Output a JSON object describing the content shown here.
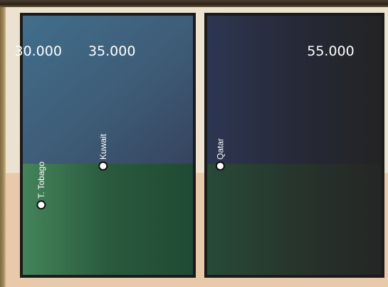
{
  "chart_data": {
    "type": "scatter",
    "title": "",
    "xlabel": "",
    "ylabel": "",
    "x_ticks": [
      {
        "value": 30000,
        "label": "30.000"
      },
      {
        "value": 35000,
        "label": "35.000"
      },
      {
        "value": 55000,
        "label": "55.000"
      }
    ],
    "xlim": [
      28950,
      58500
    ],
    "axis_break": [
      40500,
      46500
    ],
    "ylim": [
      0,
      1
    ],
    "points": [
      {
        "label": "T. Tobago",
        "x": 30200,
        "y": 0.27
      },
      {
        "label": "Kuwait",
        "x": 34400,
        "y": 0.42
      },
      {
        "label": "Qatar",
        "x": 47400,
        "y": 0.42
      }
    ]
  },
  "colors": {
    "sky_top_left": "#416e8c",
    "sky_right": "#232324",
    "ground_left": "#43845a",
    "ground_right": "#262624",
    "panel_border": "#1b1b1b",
    "frame": "#e8dcc6"
  }
}
